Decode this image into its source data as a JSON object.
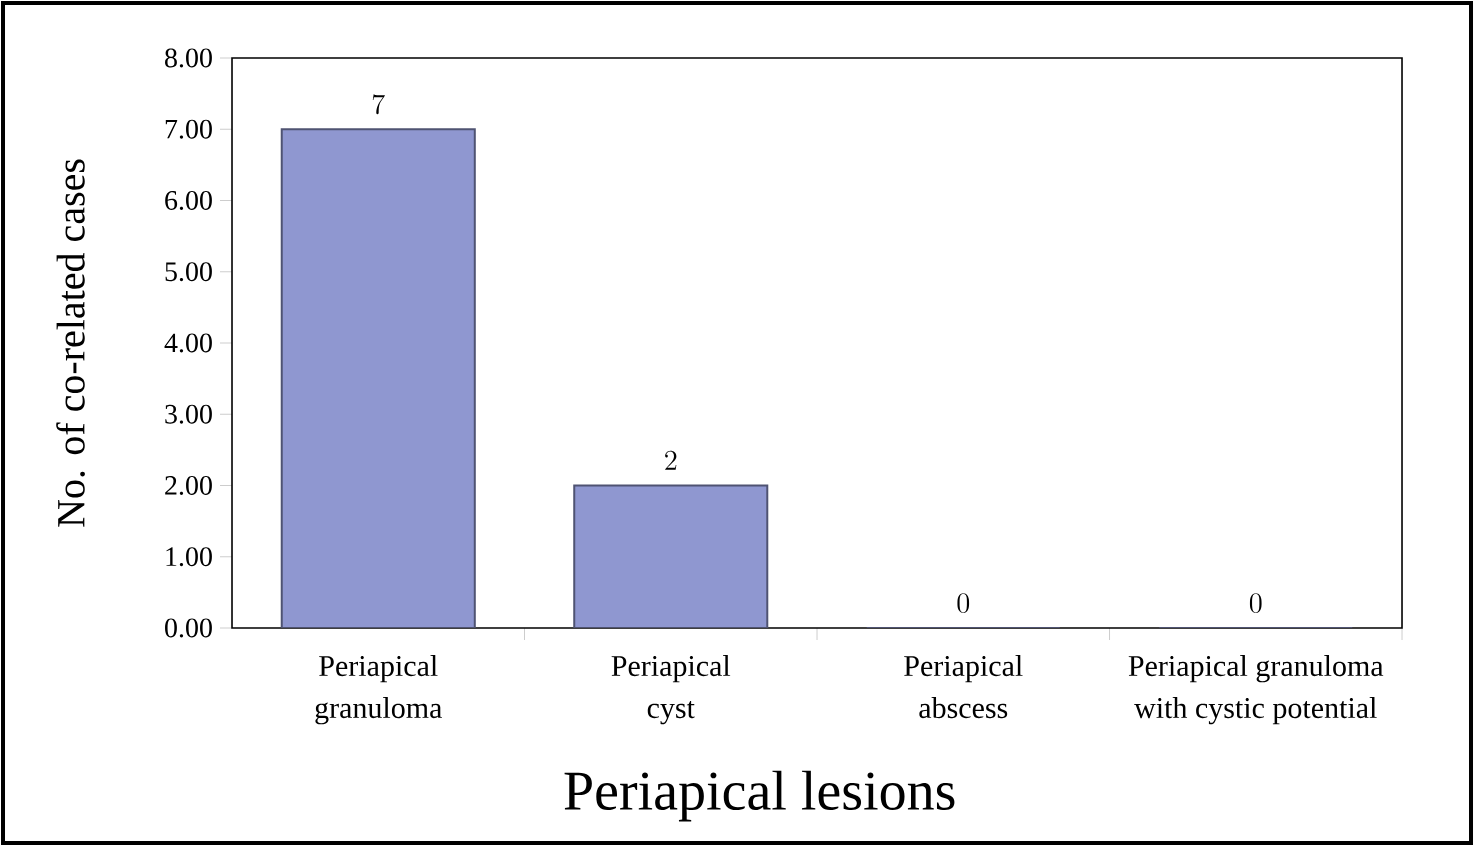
{
  "chart_data": {
    "type": "bar",
    "xlabel": "Periapical lesions",
    "ylabel": "No. of co-related cases",
    "categories": [
      "Periapical granuloma",
      "Periapical cyst",
      "Periapical abscess",
      "Periapical granuloma with cystic potential"
    ],
    "values": [
      7,
      2,
      0,
      0
    ],
    "color": "#8f97d0",
    "data_labels": true,
    "ylim": [
      0,
      8
    ],
    "yticks": [
      {
        "value": 0,
        "label": "0.00"
      },
      {
        "value": 1,
        "label": "1.00"
      },
      {
        "value": 2,
        "label": "2.00"
      },
      {
        "value": 3,
        "label": "3.00"
      },
      {
        "value": 4,
        "label": "4.00"
      },
      {
        "value": 5,
        "label": "5.00"
      },
      {
        "value": 6,
        "label": "6.00"
      },
      {
        "value": 7,
        "label": "7.00"
      },
      {
        "value": 8,
        "label": "8.00"
      }
    ]
  }
}
